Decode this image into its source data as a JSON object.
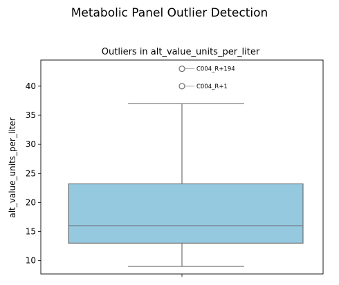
{
  "suptitle": "Metabolic Panel Outlier Detection",
  "chart_data": {
    "type": "box",
    "title": "Outliers in alt_value_units_per_liter",
    "xlabel": "",
    "ylabel": "alt_value_units_per_liter",
    "ylim": [
      7.7,
      44.5
    ],
    "yticks": [
      10,
      15,
      20,
      25,
      30,
      35,
      40
    ],
    "grid": false,
    "box": {
      "whisker_low": 9,
      "q1": 13,
      "median": 16,
      "q3": 23.2,
      "whisker_high": 37,
      "fill_color": "#94c9e0",
      "line_color": "#707070"
    },
    "outliers": [
      {
        "value": 43.0,
        "label": "C004_R+194"
      },
      {
        "value": 40.0,
        "label": "C004_R+1"
      }
    ]
  }
}
